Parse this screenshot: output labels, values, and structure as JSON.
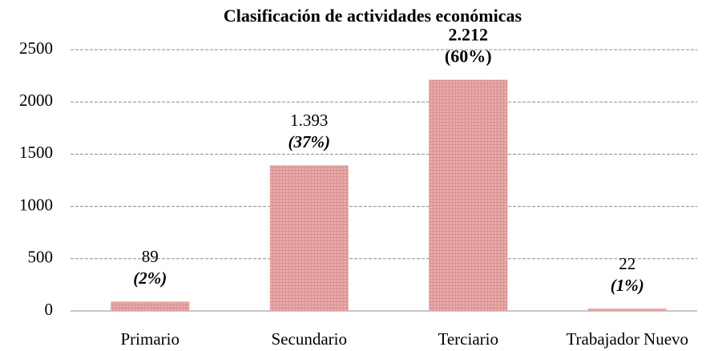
{
  "chart_data": {
    "type": "bar",
    "title": "Clasificación de actividades económicas",
    "categories": [
      "Primario",
      "Secundario",
      "Terciario",
      "Trabajador Nuevo"
    ],
    "values": [
      89,
      1393,
      2212,
      22
    ],
    "value_labels": [
      "89",
      "1.393",
      "2.212",
      "22"
    ],
    "percent_labels": [
      "(2%)",
      "(37%)",
      "(60%)",
      "(1%)"
    ],
    "color": "#e3a0a0",
    "ylim": [
      0,
      2500
    ],
    "yticks": [
      0,
      500,
      1000,
      1500,
      2000,
      2500
    ],
    "grid": true
  }
}
